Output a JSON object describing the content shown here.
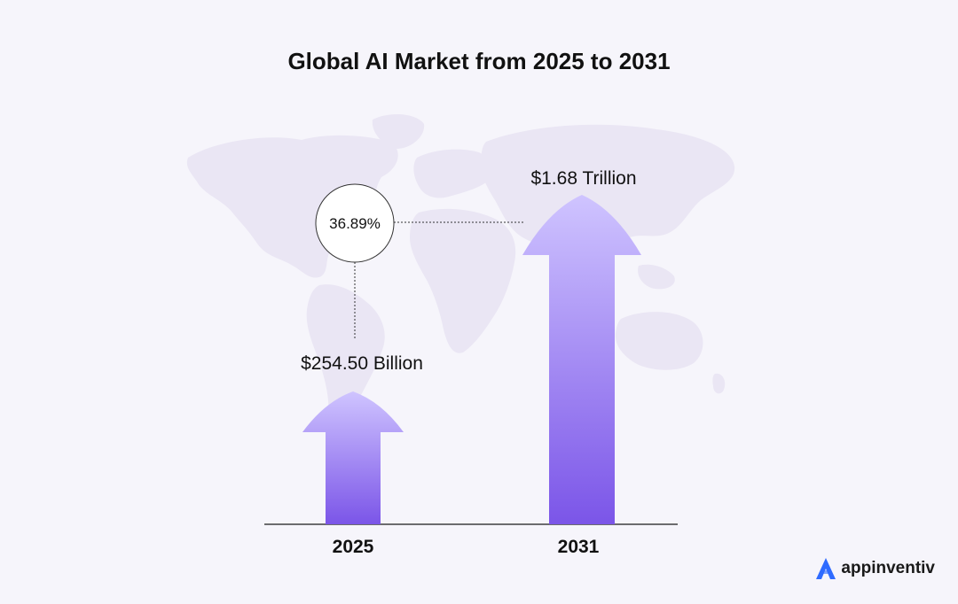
{
  "title": "Global AI Market from 2025 to 2031",
  "brand": {
    "name": "appinventiv",
    "logo_icon": "appinventiv-logo-icon",
    "logo_color": "#2f6bff"
  },
  "chart_data": {
    "type": "bar",
    "title": "Global AI Market from 2025 to 2031",
    "categories": [
      "2025",
      "2031"
    ],
    "values": [
      254.5,
      1680
    ],
    "unit": "Billion USD",
    "value_labels": [
      "$254.50 Billion",
      "$1.68 Trillion"
    ],
    "growth_label": "36.89%",
    "grid": false,
    "legend": "none",
    "colors": {
      "arrow_top": "#cfc4ff",
      "arrow_bottom": "#7b55e8",
      "map": "#eae6f4"
    }
  }
}
